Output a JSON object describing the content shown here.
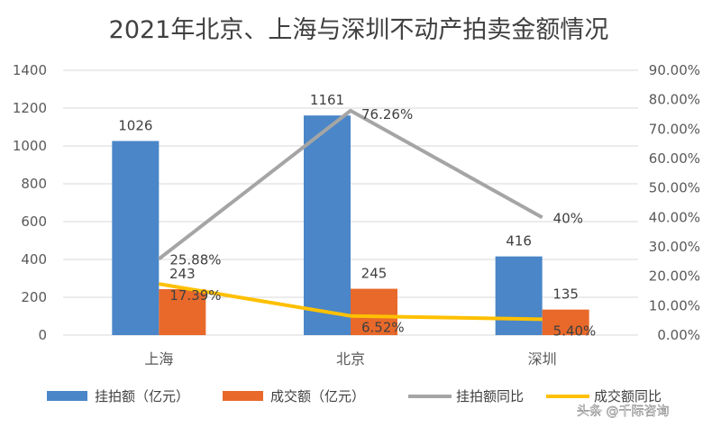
{
  "chart_data": {
    "type": "bar",
    "title": "2021年北京、上海与深圳不动产拍卖金额情况",
    "categories": [
      "上海",
      "北京",
      "深圳"
    ],
    "series": [
      {
        "name": "挂拍额（亿元）",
        "kind": "bar",
        "axis": "left",
        "color": "#4a86c8",
        "values": [
          1026,
          1161,
          416
        ],
        "labels": [
          "1026",
          "1161",
          "416"
        ]
      },
      {
        "name": "成交额（亿元）",
        "kind": "bar",
        "axis": "left",
        "color": "#e8692a",
        "values": [
          243,
          245,
          135
        ],
        "labels": [
          "243",
          "245",
          "135"
        ]
      },
      {
        "name": "挂拍额同比",
        "kind": "line",
        "axis": "right",
        "color": "#a5a5a5",
        "values": [
          0.2588,
          0.7626,
          0.4
        ],
        "labels": [
          "25.88%",
          "76.26%",
          "40%"
        ]
      },
      {
        "name": "成交额同比",
        "kind": "line",
        "axis": "right",
        "color": "#ffc000",
        "values": [
          0.1739,
          0.0652,
          0.054
        ],
        "labels": [
          "17.39%",
          "6.52%",
          "5.40%"
        ]
      }
    ],
    "y_left": {
      "min": 0,
      "max": 1400,
      "ticks": [
        "0",
        "200",
        "400",
        "600",
        "800",
        "1000",
        "1200",
        "1400"
      ]
    },
    "y_right": {
      "min": 0,
      "max": 0.9,
      "ticks": [
        "0.00%",
        "10.00%",
        "20.00%",
        "30.00%",
        "40.00%",
        "50.00%",
        "60.00%",
        "70.00%",
        "80.00%",
        "90.00%"
      ]
    },
    "grid": true,
    "legend_position": "bottom"
  },
  "watermark": {
    "text": "头条 @千际咨询"
  }
}
